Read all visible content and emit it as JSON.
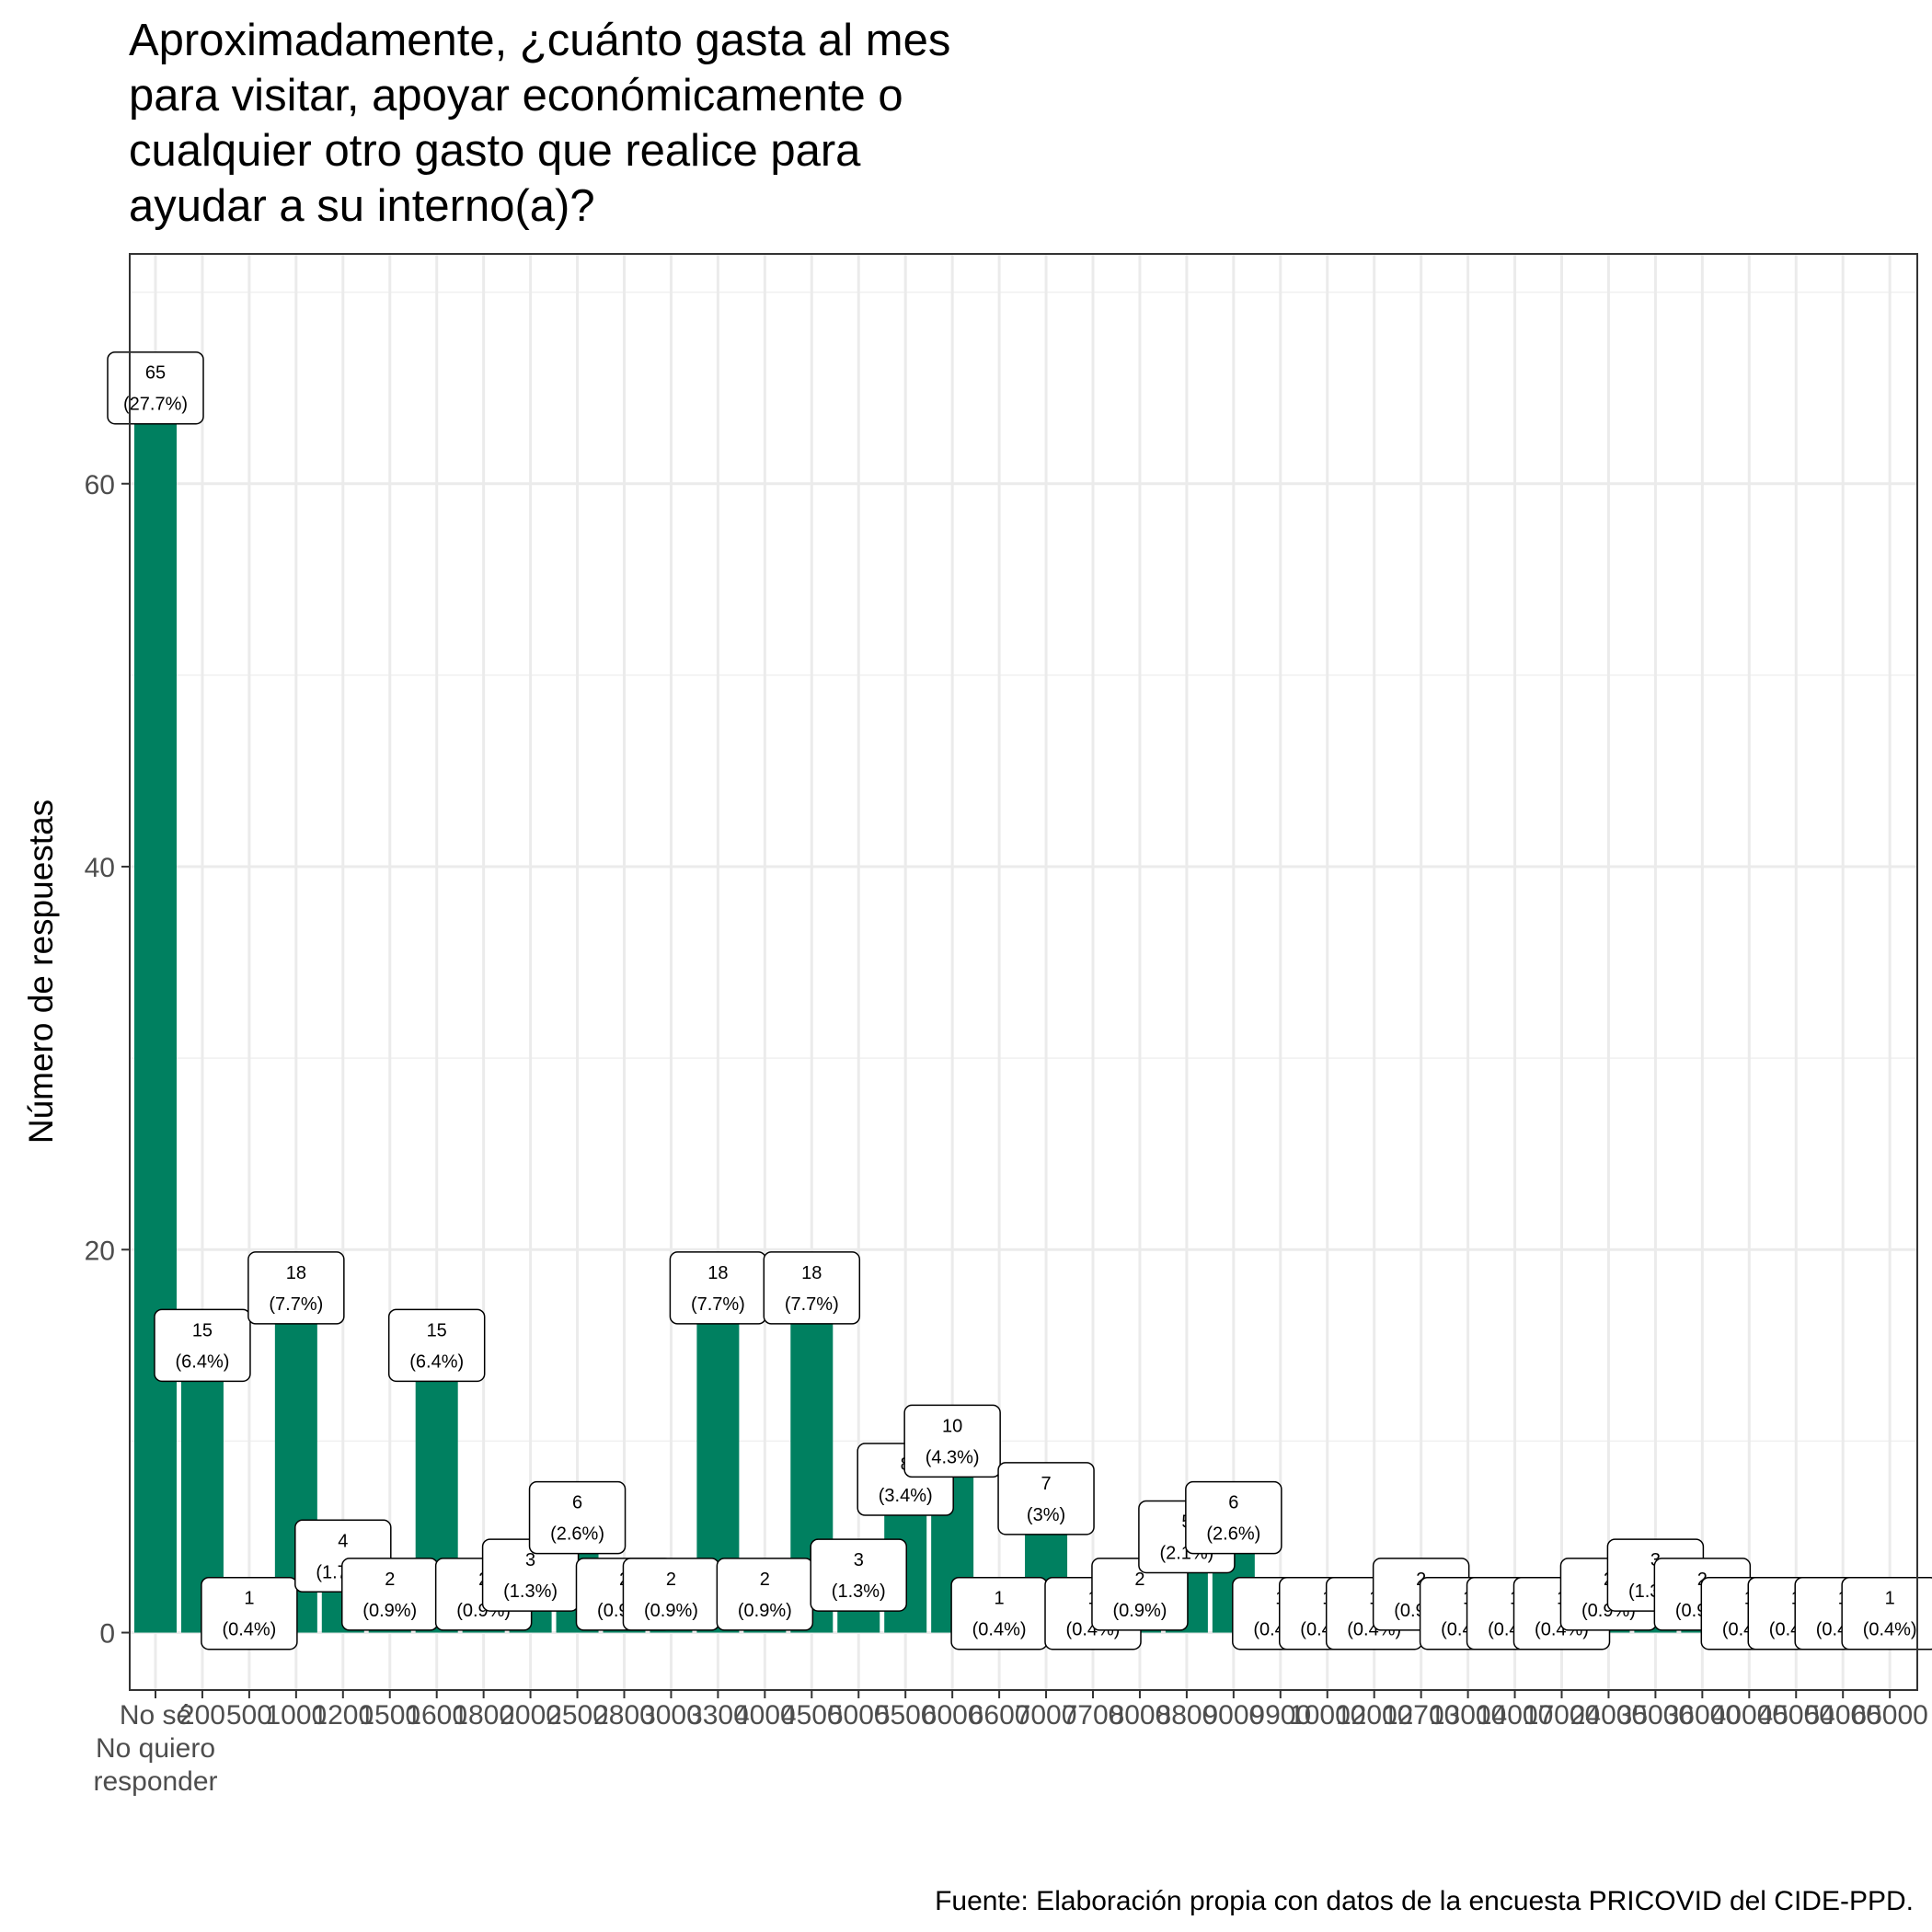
{
  "chart_data": {
    "type": "bar",
    "title_lines": [
      "Aproximadamente, ¿cuánto gasta al mes",
      "para visitar, apoyar económicamente o",
      "cualquier otro gasto que realice para",
      "ayudar a su interno(a)?"
    ],
    "xlabel": "",
    "ylabel": "Número de respuestas",
    "caption": "Fuente: Elaboración propia con datos de la encuesta PRICOVID del CIDE-PPD.",
    "ylim": [
      -3,
      72
    ],
    "yticks": [
      0,
      20,
      40,
      60
    ],
    "grid": true,
    "bar_color": "#008060",
    "categories": [
      "No sé\nNo quiero\nresponder",
      "200",
      "500",
      "1000",
      "1200",
      "1500",
      "1600",
      "1800",
      "2000",
      "2500",
      "2800",
      "3000",
      "3300",
      "4000",
      "4500",
      "5000",
      "5500",
      "6000",
      "6600",
      "7000",
      "7700",
      "8000",
      "8800",
      "9000",
      "9900",
      "10000",
      "12000",
      "12700",
      "13000",
      "14000",
      "17000",
      "24000",
      "35000",
      "36000",
      "40000",
      "45000",
      "54000",
      "65000"
    ],
    "values": [
      65,
      15,
      1,
      18,
      4,
      2,
      15,
      2,
      3,
      6,
      2,
      2,
      18,
      2,
      18,
      3,
      8,
      10,
      1,
      7,
      1,
      2,
      5,
      6,
      1,
      1,
      1,
      2,
      1,
      1,
      1,
      2,
      3,
      2,
      1,
      1,
      1,
      1
    ],
    "labels": [
      "65\n(27.7%)",
      "15\n(6.4%)",
      "1\n(0.4%)",
      "18\n(7.7%)",
      "4\n(1.7%)",
      "2\n(0.9%)",
      "15\n(6.4%)",
      "2\n(0.9%)",
      "3\n(1.3%)",
      "6\n(2.6%)",
      "2\n(0.9%)",
      "2\n(0.9%)",
      "18\n(7.7%)",
      "2\n(0.9%)",
      "18\n(7.7%)",
      "3\n(1.3%)",
      "8\n(3.4%)",
      "10\n(4.3%)",
      "1\n(0.4%)",
      "7\n(3%)",
      "1\n(0.4%)",
      "2\n(0.9%)",
      "5\n(2.1%)",
      "6\n(2.6%)",
      "1\n(0.4%)",
      "1\n(0.4%)",
      "1\n(0.4%)",
      "2\n(0.9%)",
      "1\n(0.4%)",
      "1\n(0.4%)",
      "1\n(0.4%)",
      "2\n(0.9%)",
      "3\n(1.3%)",
      "2\n(0.9%)",
      "1\n(0.4%)",
      "1\n(0.4%)",
      "1\n(0.4%)",
      "1\n(0.4%)"
    ]
  }
}
